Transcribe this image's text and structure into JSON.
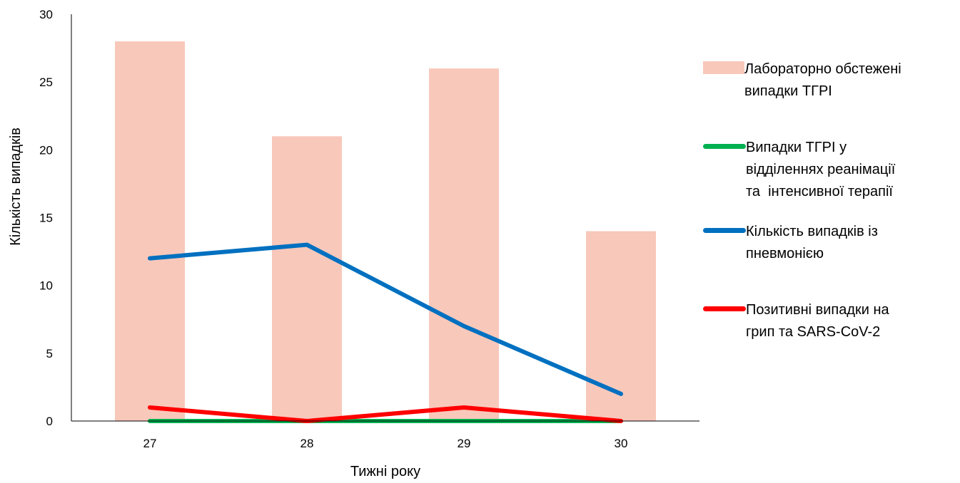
{
  "chart_data": {
    "type": "bar",
    "x": [
      27,
      28,
      29,
      30
    ],
    "categories": [
      "27",
      "28",
      "29",
      "30"
    ],
    "xlabel": "Тижні року",
    "ylabel": "Кількість випадків",
    "ylim": [
      0,
      30
    ],
    "yticks": [
      0,
      5,
      10,
      15,
      20,
      25,
      30
    ],
    "grid": false,
    "legend_position": "right",
    "series": [
      {
        "name": "Лабораторно обстежені випадки ТГРІ",
        "kind": "bar",
        "color": "#f8c8bb",
        "values": [
          28,
          21,
          26,
          14
        ]
      },
      {
        "name": "Випадки ТГРІ у відділеннях реанімації та інтенсивної терапії",
        "kind": "line",
        "color": "#00b050",
        "values": [
          0,
          0,
          0,
          0
        ]
      },
      {
        "name": "Кількість випадків із пневмонією",
        "kind": "line",
        "color": "#0070c0",
        "values": [
          12,
          13,
          7,
          2
        ]
      },
      {
        "name": "Позитивні випадки на грип та SARS-CoV-2",
        "kind": "line",
        "color": "#ff0000",
        "values": [
          1,
          0,
          1,
          0
        ]
      }
    ]
  },
  "legend": {
    "items": [
      {
        "label_lines": [
          "Лабораторно обстежені",
          "випадки ТГРІ"
        ]
      },
      {
        "label_lines": [
          "Випадки ТГРІ у",
          "відділеннях реанімації",
          "та  інтенсивної терапії"
        ]
      },
      {
        "label_lines": [
          "Кількість випадків із",
          "пневмонією"
        ]
      },
      {
        "label_lines": [
          "Позитивні випадки на",
          "грип та SARS-CoV-2"
        ]
      }
    ]
  }
}
